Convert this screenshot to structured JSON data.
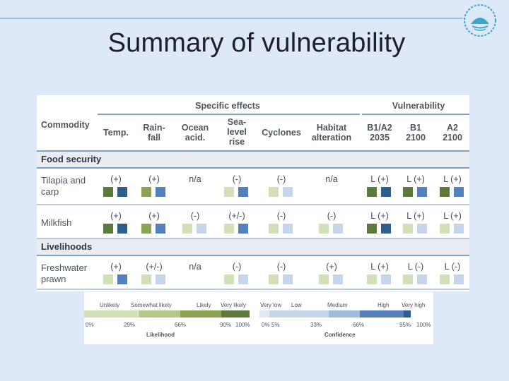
{
  "title": "Summary of vulnerability",
  "header": {
    "commodity": "Commodity",
    "specific_effects": "Specific effects",
    "vulnerability": "Vulnerability",
    "columns": [
      "Temp.",
      "Rain-\nfall",
      "Ocean\nacid.",
      "Sea-\nlevel\nrise",
      "Cyclones",
      "Habitat\nalteration",
      "B1/A2\n2035",
      "B1\n2100",
      "A2\n2100"
    ]
  },
  "sections": [
    {
      "label": "Food security",
      "rows": [
        {
          "label": "Tilapia and\ncarp",
          "values": [
            "(+)",
            "(+)",
            "n/a",
            "(-)",
            "(-)",
            "n/a",
            "L (+)",
            "L (+)",
            "L (+)"
          ],
          "likelihood": [
            "#5c7a3b",
            "#8aa452",
            null,
            "#d2e0b8",
            "#d2e0b8",
            null,
            "#5c7a3b",
            "#5c7a3b",
            "#5c7a3b"
          ],
          "confidence": [
            "#2e5e8c",
            "#5480bd",
            null,
            "#5480bd",
            "#c6d6ea",
            null,
            "#2e5e8c",
            "#5480bd",
            "#5480bd"
          ]
        },
        {
          "label": "Milkfish",
          "values": [
            "(+)",
            "(+)",
            "(-)",
            "(+/-)",
            "(-)",
            "(-)",
            "L (+)",
            "L (+)",
            "L (+)"
          ],
          "likelihood": [
            "#5c7a3b",
            "#8aa452",
            "#d2e0b8",
            "#d2e0b8",
            "#d2e0b8",
            "#d2e0b8",
            "#5c7a3b",
            "#d2e0b8",
            "#d2e0b8"
          ],
          "confidence": [
            "#2e5e8c",
            "#5480bd",
            "#c6d6ea",
            "#5480bd",
            "#c6d6ea",
            "#c6d6ea",
            "#2e5e8c",
            "#c6d6ea",
            "#c6d6ea"
          ]
        }
      ]
    },
    {
      "label": "Livelihoods",
      "rows": [
        {
          "label": "Freshwater\nprawn",
          "values": [
            "(+)",
            "(+/-)",
            "n/a",
            "(-)",
            "(-)",
            "(+)",
            "L (+)",
            "L (-)",
            "L (-)"
          ],
          "likelihood": [
            "#d2e0b8",
            "#d2e0b8",
            null,
            "#d2e0b8",
            "#d2e0b8",
            "#d2e0b8",
            "#d2e0b8",
            "#d2e0b8",
            "#d2e0b8"
          ],
          "confidence": [
            "#5480bd",
            "#c6d6ea",
            null,
            "#c6d6ea",
            "#c6d6ea",
            "#c6d6ea",
            "#c6d6ea",
            "#c6d6ea",
            "#c6d6ea"
          ]
        }
      ]
    }
  ],
  "legend": {
    "likelihood": {
      "title": "Likelihood",
      "categories": [
        "Unlikely",
        "Somewhat likely",
        "Likely",
        "Very likely"
      ],
      "ticks": [
        "0%",
        "29%",
        "66%",
        "90%",
        "100%"
      ],
      "colors": [
        "#d2e0b8",
        "#b3c98a",
        "#8aa452",
        "#5c7a3b"
      ]
    },
    "confidence": {
      "title": "Confidence",
      "categories": [
        "Very low",
        "Low",
        "Medium",
        "High",
        "Very high"
      ],
      "ticks": [
        "0%",
        "5%",
        "33%",
        "66%",
        "95%",
        "100%"
      ],
      "colors": [
        "#e1e9f4",
        "#c6d6ea",
        "#9fbbdd",
        "#5480bd",
        "#2e5e8c"
      ]
    }
  }
}
